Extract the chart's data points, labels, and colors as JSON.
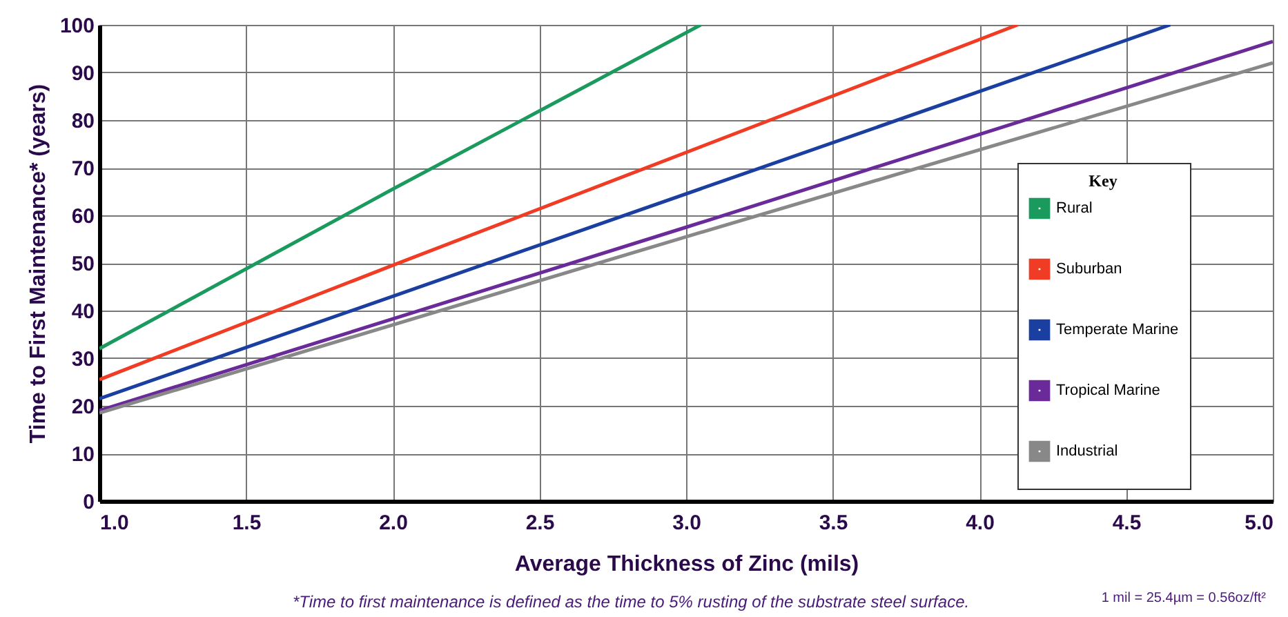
{
  "chart_data": {
    "type": "line",
    "xlabel": "Average Thickness of Zinc (mils)",
    "ylabel": "Time to First  Maintenance* (years)",
    "legend_title": "Key",
    "legend": "right",
    "grid": true,
    "line_style": "solid",
    "marker": "none",
    "xlim": [
      1.0,
      5.0
    ],
    "xticks": [
      {
        "value": 1,
        "label": "1.0"
      },
      {
        "value": 1.5,
        "label": "1.5"
      },
      {
        "value": 2,
        "label": "2.0"
      },
      {
        "value": 2.5,
        "label": "2.5"
      },
      {
        "value": 3,
        "label": "3.0"
      },
      {
        "value": 3.5,
        "label": "3.5"
      },
      {
        "value": 4,
        "label": "4.0"
      },
      {
        "value": 4.5,
        "label": "4.5"
      },
      {
        "value": 5,
        "label": "5.0"
      }
    ],
    "ylim": [
      0,
      100
    ],
    "yticks": [
      0,
      10,
      20,
      30,
      40,
      50,
      60,
      70,
      80,
      90,
      100
    ],
    "series": [
      {
        "name": "Rural",
        "color": "#1a9a5c",
        "x": [
          1.0,
          2.0,
          3.05
        ],
        "values": [
          32,
          65.5,
          100
        ]
      },
      {
        "name": "Suburban",
        "color": "#f03c24",
        "x": [
          1.0,
          2.0,
          4.13
        ],
        "values": [
          25.5,
          49.5,
          100
        ]
      },
      {
        "name": "Temperate Marine",
        "color": "#1b3fa0",
        "x": [
          1.0,
          2.0,
          4.65
        ],
        "values": [
          21.5,
          43,
          100
        ]
      },
      {
        "name": "Tropical Marine",
        "color": "#6a2a9a",
        "x": [
          1.0,
          3.0,
          5.0
        ],
        "values": [
          19,
          57.5,
          96.5
        ]
      },
      {
        "name": "Industrial",
        "color": "#888888",
        "x": [
          1.0,
          3.0,
          5.0
        ],
        "values": [
          18.5,
          55.5,
          92
        ]
      }
    ],
    "annotations": [
      "*Time to first maintenance is defined as the time to 5% rusting of the substrate steel surface.",
      "1 mil = 25.4µm = 0.56oz/ft²"
    ]
  }
}
